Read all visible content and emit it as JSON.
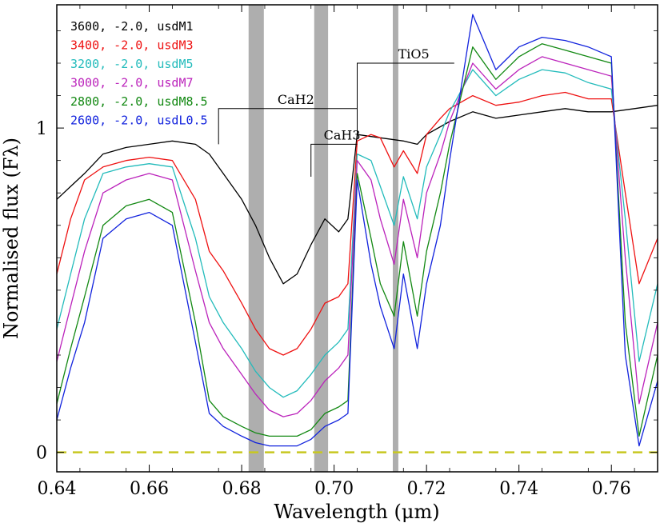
{
  "chart_data": {
    "type": "line",
    "title": "",
    "xlabel": "Wavelength (μm)",
    "ylabel": "Normalised flux  (Fλ)",
    "xlim": [
      0.64,
      0.77
    ],
    "ylim": [
      -0.06,
      1.38
    ],
    "x_ticks": [
      0.64,
      0.66,
      0.68,
      0.7,
      0.72,
      0.74,
      0.76
    ],
    "x_tick_labels": [
      "0.64",
      "0.66",
      "0.68",
      "0.70",
      "0.72",
      "0.74",
      "0.76"
    ],
    "y_ticks": [
      0,
      1
    ],
    "y_tick_labels": [
      "0",
      "1"
    ],
    "zero_line": {
      "y": 0,
      "color": "#c8c820",
      "style": "dashed"
    },
    "shaded_regions": [
      {
        "x0": 0.6815,
        "x1": 0.6848
      },
      {
        "x0": 0.6957,
        "x1": 0.6987
      },
      {
        "x0": 0.7127,
        "x1": 0.7139
      }
    ],
    "band_indices": [
      {
        "label": "CaH2",
        "x0": 0.675,
        "x1": 0.705,
        "y": 1.06,
        "tick_to": 0.95
      },
      {
        "label": "CaH3",
        "x0": 0.695,
        "x1": 0.705,
        "y": 0.95,
        "tick_to": 0.85
      },
      {
        "label": "TiO5",
        "x0": 0.705,
        "x1": 0.726,
        "y": 1.2,
        "tick_to": 0.97
      }
    ],
    "legend_position": "top-left",
    "series": [
      {
        "name": "3600, -2.0, usdM1",
        "color": "#000000",
        "x": [
          0.64,
          0.643,
          0.646,
          0.65,
          0.655,
          0.66,
          0.665,
          0.67,
          0.673,
          0.676,
          0.68,
          0.683,
          0.686,
          0.689,
          0.692,
          0.695,
          0.698,
          0.701,
          0.703,
          0.705,
          0.71,
          0.715,
          0.718,
          0.72,
          0.725,
          0.73,
          0.735,
          0.74,
          0.745,
          0.75,
          0.755,
          0.76,
          0.765,
          0.77
        ],
        "values": [
          0.78,
          0.82,
          0.86,
          0.92,
          0.94,
          0.95,
          0.96,
          0.95,
          0.92,
          0.86,
          0.78,
          0.7,
          0.6,
          0.52,
          0.55,
          0.64,
          0.72,
          0.68,
          0.72,
          0.98,
          0.97,
          0.96,
          0.95,
          0.98,
          1.02,
          1.05,
          1.03,
          1.04,
          1.05,
          1.06,
          1.05,
          1.05,
          1.06,
          1.07
        ]
      },
      {
        "name": "3400, -2.0, usdM3",
        "color": "#ee1111",
        "x": [
          0.64,
          0.643,
          0.646,
          0.65,
          0.655,
          0.66,
          0.665,
          0.67,
          0.673,
          0.676,
          0.68,
          0.683,
          0.686,
          0.689,
          0.692,
          0.695,
          0.698,
          0.701,
          0.703,
          0.705,
          0.708,
          0.71,
          0.713,
          0.715,
          0.718,
          0.72,
          0.723,
          0.725,
          0.73,
          0.735,
          0.74,
          0.745,
          0.75,
          0.755,
          0.76,
          0.763,
          0.766,
          0.77
        ],
        "values": [
          0.55,
          0.72,
          0.84,
          0.88,
          0.9,
          0.91,
          0.9,
          0.78,
          0.62,
          0.56,
          0.46,
          0.38,
          0.32,
          0.3,
          0.32,
          0.38,
          0.46,
          0.48,
          0.52,
          0.96,
          0.98,
          0.97,
          0.88,
          0.93,
          0.86,
          0.98,
          1.03,
          1.06,
          1.1,
          1.07,
          1.08,
          1.1,
          1.11,
          1.09,
          1.09,
          0.8,
          0.52,
          0.66
        ]
      },
      {
        "name": "3200, -2.0, usdM5",
        "color": "#22bbbb",
        "x": [
          0.64,
          0.643,
          0.646,
          0.65,
          0.655,
          0.66,
          0.665,
          0.67,
          0.673,
          0.676,
          0.68,
          0.683,
          0.686,
          0.689,
          0.692,
          0.695,
          0.698,
          0.701,
          0.703,
          0.705,
          0.708,
          0.71,
          0.713,
          0.715,
          0.718,
          0.72,
          0.723,
          0.725,
          0.73,
          0.735,
          0.74,
          0.745,
          0.75,
          0.755,
          0.76,
          0.763,
          0.766,
          0.77
        ],
        "values": [
          0.38,
          0.55,
          0.72,
          0.86,
          0.88,
          0.89,
          0.88,
          0.66,
          0.48,
          0.4,
          0.32,
          0.25,
          0.2,
          0.17,
          0.19,
          0.24,
          0.3,
          0.34,
          0.38,
          0.92,
          0.9,
          0.82,
          0.7,
          0.85,
          0.72,
          0.88,
          0.98,
          1.05,
          1.18,
          1.1,
          1.15,
          1.18,
          1.17,
          1.14,
          1.12,
          0.72,
          0.28,
          0.52
        ]
      },
      {
        "name": "3000, -2.0, usdM7",
        "color": "#bb22bb",
        "x": [
          0.64,
          0.643,
          0.646,
          0.65,
          0.655,
          0.66,
          0.665,
          0.67,
          0.673,
          0.676,
          0.68,
          0.683,
          0.686,
          0.689,
          0.692,
          0.695,
          0.698,
          0.701,
          0.703,
          0.705,
          0.708,
          0.71,
          0.713,
          0.715,
          0.718,
          0.72,
          0.723,
          0.725,
          0.73,
          0.735,
          0.74,
          0.745,
          0.75,
          0.755,
          0.76,
          0.763,
          0.766,
          0.77
        ],
        "values": [
          0.28,
          0.45,
          0.62,
          0.8,
          0.84,
          0.86,
          0.84,
          0.56,
          0.4,
          0.32,
          0.24,
          0.18,
          0.13,
          0.11,
          0.12,
          0.16,
          0.22,
          0.26,
          0.3,
          0.9,
          0.84,
          0.72,
          0.58,
          0.78,
          0.6,
          0.8,
          0.92,
          1.02,
          1.2,
          1.12,
          1.18,
          1.22,
          1.2,
          1.18,
          1.16,
          0.6,
          0.15,
          0.4
        ]
      },
      {
        "name": "2800, -2.0, usdM8.5",
        "color": "#118811",
        "x": [
          0.64,
          0.643,
          0.646,
          0.65,
          0.655,
          0.66,
          0.665,
          0.67,
          0.673,
          0.676,
          0.68,
          0.683,
          0.686,
          0.689,
          0.692,
          0.695,
          0.698,
          0.701,
          0.703,
          0.705,
          0.708,
          0.71,
          0.713,
          0.715,
          0.718,
          0.72,
          0.723,
          0.725,
          0.73,
          0.735,
          0.74,
          0.745,
          0.75,
          0.755,
          0.76,
          0.763,
          0.766,
          0.77
        ],
        "values": [
          0.15,
          0.32,
          0.48,
          0.7,
          0.76,
          0.78,
          0.74,
          0.4,
          0.16,
          0.11,
          0.08,
          0.06,
          0.05,
          0.05,
          0.05,
          0.07,
          0.12,
          0.14,
          0.16,
          0.86,
          0.66,
          0.52,
          0.42,
          0.65,
          0.42,
          0.62,
          0.8,
          0.95,
          1.25,
          1.15,
          1.22,
          1.26,
          1.24,
          1.22,
          1.2,
          0.4,
          0.05,
          0.3
        ]
      },
      {
        "name": "2600, -2.0, usdL0.5",
        "color": "#1122dd",
        "x": [
          0.64,
          0.643,
          0.646,
          0.65,
          0.655,
          0.66,
          0.665,
          0.67,
          0.673,
          0.676,
          0.68,
          0.683,
          0.686,
          0.689,
          0.692,
          0.695,
          0.698,
          0.701,
          0.703,
          0.705,
          0.708,
          0.71,
          0.713,
          0.715,
          0.718,
          0.72,
          0.723,
          0.725,
          0.73,
          0.735,
          0.74,
          0.745,
          0.75,
          0.755,
          0.76,
          0.763,
          0.766,
          0.77
        ],
        "values": [
          0.1,
          0.26,
          0.4,
          0.66,
          0.72,
          0.74,
          0.7,
          0.34,
          0.12,
          0.08,
          0.05,
          0.03,
          0.02,
          0.02,
          0.02,
          0.04,
          0.08,
          0.1,
          0.12,
          0.84,
          0.58,
          0.45,
          0.32,
          0.55,
          0.32,
          0.52,
          0.7,
          0.9,
          1.35,
          1.18,
          1.25,
          1.28,
          1.27,
          1.25,
          1.22,
          0.3,
          0.02,
          0.22
        ]
      }
    ]
  }
}
